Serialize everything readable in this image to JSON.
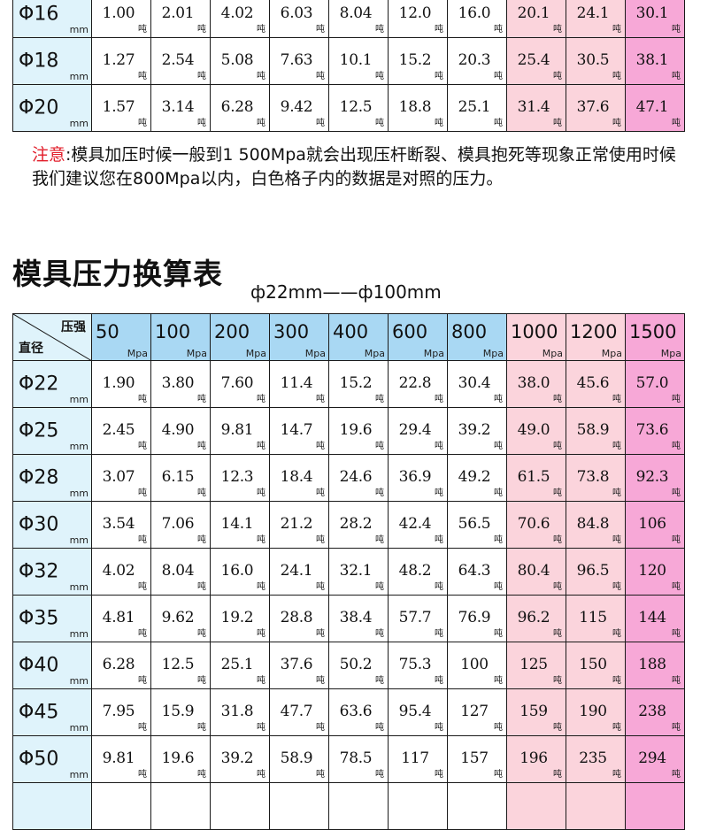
{
  "unit_ton": "吨",
  "unit_mm": "mm",
  "unit_mpa": "Mpa",
  "top_table": {
    "rows": [
      {
        "diameter": "Φ16",
        "values": [
          "1.00",
          "2.01",
          "4.02",
          "6.03",
          "8.04",
          "12.0",
          "16.0",
          "20.1",
          "24.1",
          "30.1"
        ]
      },
      {
        "diameter": "Φ18",
        "values": [
          "1.27",
          "2.54",
          "5.08",
          "7.63",
          "10.1",
          "15.2",
          "20.3",
          "25.4",
          "30.5",
          "38.1"
        ]
      },
      {
        "diameter": "Φ20",
        "values": [
          "1.57",
          "3.14",
          "6.28",
          "9.42",
          "12.5",
          "18.8",
          "25.1",
          "31.4",
          "37.6",
          "47.1"
        ]
      }
    ]
  },
  "note": {
    "label": "注意",
    "text": ":模具加压时候一般到1 500Mpa就会出现压杆断裂、模具抱死等现象正常使用时候我们建议您在800Mpa以内，白色格子内的数据是对照的压力。"
  },
  "section": {
    "title": "模具压力换算表",
    "subtitle": "ф22mm——ф100mm"
  },
  "main_table": {
    "corner_top": "压强",
    "corner_bottom": "直径",
    "pressures": [
      "50",
      "100",
      "200",
      "300",
      "400",
      "600",
      "800",
      "1000",
      "1200",
      "1500"
    ],
    "rows": [
      {
        "diameter": "Φ22",
        "values": [
          "1.90",
          "3.80",
          "7.60",
          "11.4",
          "15.2",
          "22.8",
          "30.4",
          "38.0",
          "45.6",
          "57.0"
        ]
      },
      {
        "diameter": "Φ25",
        "values": [
          "2.45",
          "4.90",
          "9.81",
          "14.7",
          "19.6",
          "29.4",
          "39.2",
          "49.0",
          "58.9",
          "73.6"
        ]
      },
      {
        "diameter": "Φ28",
        "values": [
          "3.07",
          "6.15",
          "12.3",
          "18.4",
          "24.6",
          "36.9",
          "49.2",
          "61.5",
          "73.8",
          "92.3"
        ]
      },
      {
        "diameter": "Φ30",
        "values": [
          "3.54",
          "7.06",
          "14.1",
          "21.2",
          "28.2",
          "42.4",
          "56.5",
          "70.6",
          "84.8",
          "106"
        ]
      },
      {
        "diameter": "Φ32",
        "values": [
          "4.02",
          "8.04",
          "16.0",
          "24.1",
          "32.1",
          "48.2",
          "64.3",
          "80.4",
          "96.5",
          "120"
        ]
      },
      {
        "diameter": "Φ35",
        "values": [
          "4.81",
          "9.62",
          "19.2",
          "28.8",
          "38.4",
          "57.7",
          "76.9",
          "96.2",
          "115",
          "144"
        ]
      },
      {
        "diameter": "Φ40",
        "values": [
          "6.28",
          "12.5",
          "25.1",
          "37.6",
          "50.2",
          "75.3",
          "100",
          "125",
          "150",
          "188"
        ]
      },
      {
        "diameter": "Φ45",
        "values": [
          "7.95",
          "15.9",
          "31.8",
          "47.7",
          "63.6",
          "95.4",
          "127",
          "159",
          "190",
          "238"
        ]
      },
      {
        "diameter": "Φ50",
        "values": [
          "9.81",
          "19.6",
          "39.2",
          "58.9",
          "78.5",
          "117",
          "157",
          "196",
          "235",
          "294"
        ]
      }
    ]
  },
  "colors": {
    "header_blue": "#a9d8f3",
    "diameter_bg": "#dff3fb",
    "pink": "#fbd4dc",
    "magenta": "#f7a8d7",
    "note_red": "#e21d2a"
  }
}
